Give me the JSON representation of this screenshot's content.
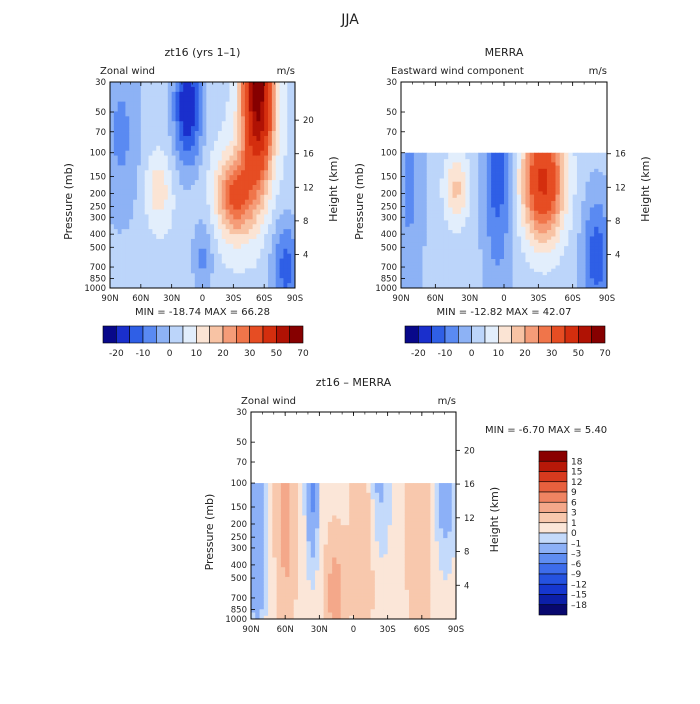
{
  "page": {
    "title": "JJA"
  },
  "chart_data": [
    {
      "type": "heatmap",
      "title": "zt16 (yrs 1–1)",
      "subtitle_left": "Zonal wind",
      "subtitle_right": "m/s",
      "xlabel": "",
      "ylabel": "Pressure (mb)",
      "ylabel_right": "Height (km)",
      "x_ticks": [
        "90N",
        "60N",
        "30N",
        "0",
        "30S",
        "60S",
        "90S"
      ],
      "y_ticks": [
        "30",
        "50",
        "70",
        "100",
        "150",
        "200",
        "250",
        "300",
        "400",
        "500",
        "700",
        "850",
        "1000"
      ],
      "height_ticks": [
        "4",
        "8",
        "12",
        "16",
        "20"
      ],
      "stats": "MIN =  -18.74    MAX =   66.28",
      "colorbar_labels": [
        "-20",
        "-10",
        "0",
        "10",
        "20",
        "30",
        "50",
        "70"
      ],
      "top_pressure": 30,
      "levels": [
        -20,
        -15,
        -10,
        -5,
        0,
        5,
        10,
        15,
        20,
        25,
        30,
        40,
        50,
        60,
        70
      ],
      "colors": [
        "#08088a",
        "#1a2fcc",
        "#2f5fe6",
        "#5a8af2",
        "#8db2f5",
        "#bcd5fa",
        "#e2eefc",
        "#fbe4d4",
        "#f8c3a4",
        "#f59c78",
        "#f0754a",
        "#e64d23",
        "#d42e0e",
        "#b01204",
        "#860000"
      ],
      "min": -18.74,
      "max": 66.28
    },
    {
      "type": "heatmap",
      "title": "MERRA",
      "subtitle_left": "Eastward wind component",
      "subtitle_right": "m/s",
      "xlabel": "",
      "ylabel": "Pressure (mb)",
      "ylabel_right": "Height (km)",
      "x_ticks": [
        "90N",
        "60N",
        "30N",
        "0",
        "30S",
        "60S",
        "90S"
      ],
      "y_ticks": [
        "30",
        "50",
        "70",
        "100",
        "150",
        "200",
        "250",
        "300",
        "400",
        "500",
        "700",
        "850",
        "1000"
      ],
      "height_ticks": [
        "4",
        "8",
        "12",
        "16"
      ],
      "stats": "MIN =  -12.82    MAX =   42.07",
      "colorbar_labels": [
        "-20",
        "-10",
        "0",
        "10",
        "20",
        "30",
        "50",
        "70"
      ],
      "top_pressure": 100,
      "levels": [
        -20,
        -15,
        -10,
        -5,
        0,
        5,
        10,
        15,
        20,
        25,
        30,
        40,
        50,
        60,
        70
      ],
      "colors": [
        "#08088a",
        "#1a2fcc",
        "#2f5fe6",
        "#5a8af2",
        "#8db2f5",
        "#bcd5fa",
        "#e2eefc",
        "#fbe4d4",
        "#f8c3a4",
        "#f59c78",
        "#f0754a",
        "#e64d23",
        "#d42e0e",
        "#b01204",
        "#860000"
      ],
      "min": -12.82,
      "max": 42.07
    },
    {
      "type": "heatmap",
      "title": "zt16 – MERRA",
      "subtitle_left": "Zonal wind",
      "subtitle_right": "m/s",
      "xlabel": "",
      "ylabel": "Pressure (mb)",
      "ylabel_right": "Height (km)",
      "x_ticks": [
        "90N",
        "60N",
        "30N",
        "0",
        "30S",
        "60S",
        "90S"
      ],
      "y_ticks": [
        "30",
        "50",
        "70",
        "100",
        "150",
        "200",
        "250",
        "300",
        "400",
        "500",
        "700",
        "850",
        "1000"
      ],
      "height_ticks": [
        "4",
        "8",
        "12",
        "16",
        "20"
      ],
      "stats": "MIN =   -6.70    MAX =    5.40",
      "colorbar_labels": [
        "18",
        "15",
        "12",
        "9",
        "6",
        "3",
        "1",
        "0",
        "–1",
        "–3",
        "–6",
        "–9",
        "–12",
        "–15",
        "–18"
      ],
      "top_pressure": 100,
      "levels": [
        -18,
        -15,
        -12,
        -9,
        -6,
        -3,
        -1,
        0,
        1,
        3,
        6,
        9,
        12,
        15,
        18
      ],
      "colors": [
        "#08086e",
        "#0c1fa8",
        "#1637cf",
        "#2552e0",
        "#3d6ceb",
        "#5f8df2",
        "#8cb0f7",
        "#c4dafb",
        "#fbe6d8",
        "#f8c8ad",
        "#f4a88a",
        "#f08462",
        "#e8603e",
        "#d83a1e",
        "#b81808",
        "#8a0000"
      ],
      "min": -6.7,
      "max": 5.4
    }
  ]
}
